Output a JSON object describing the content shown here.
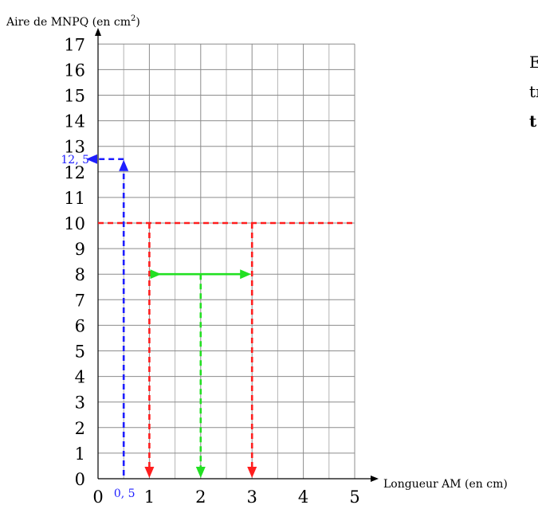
{
  "chart_data": {
    "type": "line",
    "title": "",
    "ylabel": "Aire de MNPQ (en cm",
    "ylabel_sup": "2",
    "ylabel_close": ")",
    "xlabel": "Longueur AM (en cm)",
    "xlim": [
      0,
      5
    ],
    "ylim": [
      0,
      17
    ],
    "grid": true,
    "x_ticks": [
      "0",
      "1",
      "2",
      "3",
      "4",
      "5"
    ],
    "y_ticks": [
      "0",
      "1",
      "2",
      "3",
      "4",
      "5",
      "6",
      "7",
      "8",
      "9",
      "10",
      "11",
      "12",
      "13",
      "14",
      "15",
      "16",
      "17"
    ],
    "annotations": [
      {
        "name": "blue",
        "color": "#1e1eff",
        "x": 0.5,
        "y": 12.5,
        "x_label": "0, 5",
        "y_label": "12, 5"
      },
      {
        "name": "red",
        "color": "#ff1e1e",
        "y": 10,
        "x_values": [
          1,
          3
        ]
      },
      {
        "name": "green",
        "color": "#22e022",
        "x": 2,
        "y": 8,
        "x_range": [
          1,
          3
        ]
      }
    ]
  },
  "side_text": [
    "E",
    "tı",
    "t"
  ]
}
